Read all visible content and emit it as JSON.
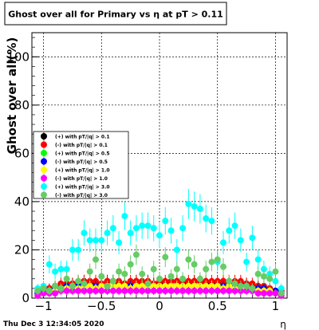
{
  "chart_data": {
    "type": "scatter",
    "title": "Ghost over all for Primary vs  η at pT > 0.11",
    "ylabel": "Ghost over all(%)",
    "xlabel": "η",
    "xlim": [
      -1.1,
      1.1
    ],
    "ylim": [
      0,
      110
    ],
    "grid": true,
    "legend_position": "left-middle",
    "x_ticks": [
      {
        "value": -1,
        "label": "−1"
      },
      {
        "value": -0.5,
        "label": "−0.5"
      },
      {
        "value": 0,
        "label": "0"
      },
      {
        "value": 0.5,
        "label": "0.5"
      },
      {
        "value": 1,
        "label": "1"
      }
    ],
    "y_ticks": [
      {
        "value": 0,
        "label": "0"
      },
      {
        "value": 20,
        "label": "20"
      },
      {
        "value": 40,
        "label": "40"
      },
      {
        "value": 60,
        "label": "60"
      },
      {
        "value": 80,
        "label": "80"
      },
      {
        "value": 100,
        "label": "100"
      }
    ],
    "x": [
      -1.05,
      -1.0,
      -0.95,
      -0.9,
      -0.85,
      -0.8,
      -0.75,
      -0.7,
      -0.65,
      -0.6,
      -0.55,
      -0.5,
      -0.45,
      -0.4,
      -0.35,
      -0.3,
      -0.25,
      -0.2,
      -0.15,
      -0.1,
      -0.05,
      0.0,
      0.05,
      0.1,
      0.15,
      0.2,
      0.25,
      0.3,
      0.35,
      0.4,
      0.45,
      0.5,
      0.55,
      0.6,
      0.65,
      0.7,
      0.75,
      0.8,
      0.85,
      0.9,
      0.95,
      1.0,
      1.05
    ],
    "series": [
      {
        "name": "(+) with pT/|q| > 0.1",
        "color": "#000000",
        "values": [
          3,
          4,
          4,
          5,
          5,
          6,
          6,
          6,
          7,
          6,
          6,
          6,
          7,
          7,
          6,
          6,
          6,
          7,
          6,
          7,
          6,
          6,
          6,
          7,
          7,
          6,
          6,
          7,
          7,
          6,
          6,
          6,
          7,
          6,
          6,
          6,
          6,
          5,
          5,
          4,
          4,
          3,
          3
        ]
      },
      {
        "name": "(-) with pT/|q| > 0.1",
        "color": "#ff0000",
        "values": [
          2,
          3,
          4,
          5,
          6,
          6,
          6,
          7,
          7,
          7,
          7,
          6,
          7,
          7,
          7,
          6,
          7,
          7,
          7,
          7,
          6,
          7,
          7,
          7,
          7,
          7,
          7,
          7,
          7,
          7,
          7,
          7,
          7,
          7,
          7,
          7,
          6,
          6,
          5,
          5,
          4,
          3,
          3
        ]
      },
      {
        "name": "(+) with pT/|q| > 0.5",
        "color": "#00ff00",
        "values": [
          2,
          3,
          3,
          4,
          4,
          5,
          5,
          5,
          5,
          5,
          5,
          5,
          5,
          5,
          5,
          5,
          5,
          5,
          5,
          5,
          5,
          5,
          5,
          5,
          5,
          5,
          5,
          5,
          5,
          5,
          5,
          5,
          5,
          5,
          5,
          5,
          5,
          4,
          4,
          4,
          3,
          3,
          2
        ]
      },
      {
        "name": "(-) with pT/|q| > 0.5",
        "color": "#0000ff",
        "values": [
          2,
          3,
          3,
          4,
          4,
          5,
          5,
          5,
          5,
          5,
          5,
          5,
          5,
          5,
          5,
          5,
          5,
          5,
          5,
          5,
          5,
          5,
          5,
          5,
          5,
          5,
          5,
          5,
          5,
          5,
          5,
          5,
          5,
          5,
          5,
          5,
          5,
          4,
          4,
          4,
          3,
          3,
          2
        ]
      },
      {
        "name": "(+) with pT/|q| > 1.0",
        "color": "#ffff00",
        "values": [
          1,
          2,
          3,
          3,
          4,
          4,
          5,
          4,
          5,
          5,
          4,
          5,
          5,
          5,
          5,
          5,
          4,
          5,
          5,
          5,
          5,
          5,
          5,
          5,
          5,
          5,
          5,
          5,
          5,
          5,
          5,
          5,
          4,
          5,
          4,
          4,
          4,
          4,
          3,
          3,
          3,
          2,
          1
        ]
      },
      {
        "name": "(-) with pT/|q| > 1.0",
        "color": "#ff00ff",
        "values": [
          1,
          2,
          2,
          2,
          3,
          3,
          3,
          3,
          3,
          3,
          3,
          3,
          3,
          3,
          3,
          3,
          3,
          3,
          3,
          3,
          3,
          3,
          3,
          3,
          3,
          3,
          3,
          3,
          3,
          3,
          3,
          3,
          3,
          3,
          3,
          3,
          3,
          3,
          2,
          2,
          2,
          2,
          1
        ]
      },
      {
        "name": "(+) with pT/|q| > 3.0",
        "color": "#00ffff",
        "values": [
          4,
          5,
          14,
          11,
          12,
          12,
          20,
          20,
          27,
          24,
          24,
          24,
          27,
          29,
          23,
          34,
          27,
          29,
          30,
          30,
          29,
          26,
          32,
          28,
          20,
          29,
          39,
          38,
          37,
          33,
          32,
          15,
          23,
          28,
          30,
          24,
          15,
          25,
          16,
          12,
          10,
          7,
          4
        ]
      },
      {
        "name": "(-) with pT/|q| > 3.0",
        "color": "#66cc66",
        "values": [
          3,
          4,
          3,
          5,
          4,
          8,
          5,
          7,
          6,
          11,
          16,
          9,
          5,
          7,
          11,
          10,
          14,
          18,
          10,
          6,
          12,
          8,
          17,
          9,
          12,
          8,
          16,
          14,
          8,
          12,
          15,
          16,
          13,
          7,
          6,
          5,
          5,
          4,
          10,
          9,
          8,
          11,
          2
        ]
      }
    ],
    "footer_left": "Thu Dec  3 12:34:05 2020"
  }
}
